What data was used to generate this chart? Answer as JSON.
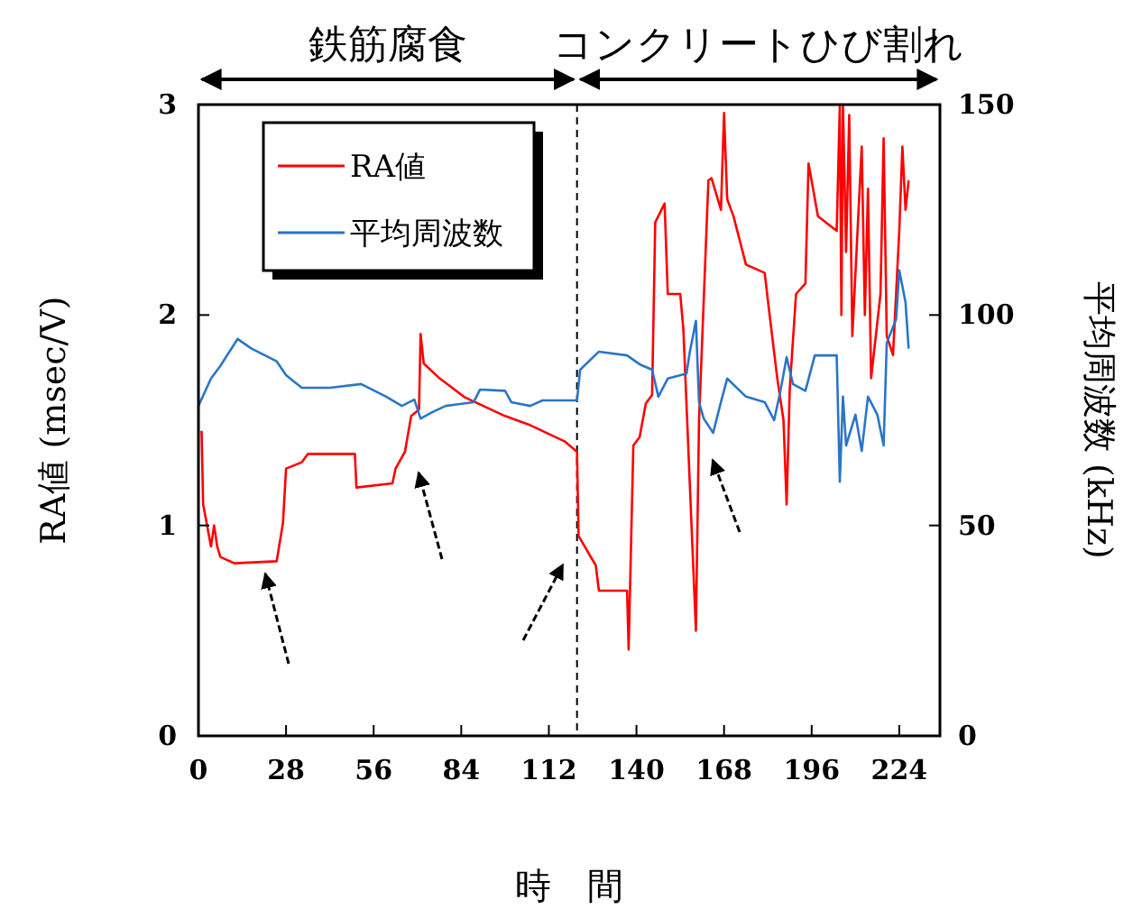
{
  "chart_data": {
    "type": "line",
    "xlabel": "時　間",
    "ylabel": "RA値 (msec/V)",
    "y2label": "平均周波数 (kHz)",
    "annotations": [
      "鉄筋腐食",
      "コンクリートひび割れ"
    ],
    "xlim": [
      0,
      237
    ],
    "xticks": [
      0,
      28,
      56,
      84,
      112,
      140,
      168,
      196,
      224
    ],
    "ylim": [
      0,
      3
    ],
    "yticks": [
      0,
      1,
      2,
      3
    ],
    "y2lim": [
      0,
      150
    ],
    "y2ticks": [
      0,
      50,
      100,
      150
    ],
    "ref_lines": [
      {
        "axis": "x",
        "value": 121,
        "line_style": "dashed",
        "color": "#000000"
      }
    ],
    "legend": "top left",
    "grid": false,
    "series": [
      {
        "name": "RA値",
        "color": "#ff0000",
        "x": [
          1,
          1.5,
          4,
          5,
          6,
          7,
          11.5,
          25,
          27,
          28,
          33,
          35,
          50,
          50.5,
          62,
          63,
          66,
          68,
          70.5,
          71,
          72,
          77,
          85,
          98,
          105.5,
          117,
          121,
          121.5,
          127,
          128,
          137,
          137.5,
          139,
          141,
          143,
          145,
          146,
          149,
          150,
          154,
          155,
          159,
          160,
          163,
          164,
          167,
          168,
          169,
          171,
          175,
          181,
          182,
          185,
          187,
          188,
          189,
          191,
          194,
          195,
          198,
          204,
          205,
          205.5,
          206,
          207,
          208,
          209,
          212,
          213,
          214,
          215,
          218,
          219,
          220,
          222,
          224,
          225,
          226,
          227
        ],
        "values": [
          1.45,
          1.1,
          0.9,
          1.0,
          0.9,
          0.85,
          0.82,
          0.83,
          1.01,
          1.27,
          1.3,
          1.34,
          1.34,
          1.18,
          1.2,
          1.27,
          1.35,
          1.52,
          1.55,
          1.91,
          1.77,
          1.7,
          1.61,
          1.52,
          1.48,
          1.4,
          1.35,
          0.95,
          0.81,
          0.69,
          0.69,
          0.41,
          1.38,
          1.42,
          1.58,
          1.62,
          2.44,
          2.53,
          2.1,
          2.1,
          1.93,
          0.5,
          1.5,
          2.64,
          2.65,
          2.5,
          2.96,
          2.55,
          2.47,
          2.24,
          2.2,
          2.07,
          1.7,
          1.5,
          1.1,
          1.65,
          2.1,
          2.15,
          2.72,
          2.47,
          2.4,
          3.0,
          2.0,
          3.0,
          2.3,
          2.95,
          1.9,
          2.8,
          2.0,
          2.6,
          1.7,
          2.1,
          2.84,
          1.9,
          1.81,
          2.4,
          2.8,
          2.5,
          2.64
        ]
      },
      {
        "name": "平均周波数",
        "color": "#2a75c8",
        "axis": "y2",
        "x": [
          0,
          4,
          7,
          12.5,
          17,
          25,
          28,
          33,
          42,
          52,
          60,
          65,
          69,
          71,
          75,
          79,
          88,
          90,
          98,
          100,
          106,
          110,
          121,
          122,
          128,
          137,
          141,
          145,
          147,
          150,
          156,
          157,
          159,
          160,
          161.5,
          164.5,
          167,
          169,
          175,
          181,
          184,
          186,
          188,
          190,
          194,
          197,
          204,
          205,
          206,
          207,
          210,
          212,
          214,
          217,
          219,
          220,
          223,
          224,
          226,
          227
        ],
        "values": [
          78.4,
          84.9,
          87.9,
          94.3,
          92,
          89,
          85.7,
          82.7,
          82.7,
          83.6,
          80.6,
          78.4,
          79.9,
          75.4,
          77,
          78.4,
          79.3,
          82.3,
          82,
          79.3,
          78.4,
          79.7,
          79.7,
          87,
          91.3,
          90.4,
          88.3,
          87,
          80.6,
          84.9,
          86.1,
          91,
          98.6,
          79.3,
          75.4,
          72,
          79.3,
          84.9,
          80.6,
          79.3,
          75,
          81.9,
          90,
          83.6,
          82,
          90.4,
          90.4,
          60.4,
          80.6,
          69,
          76.3,
          67.7,
          80.6,
          76.3,
          69,
          93.4,
          99,
          110.6,
          103,
          92
        ]
      }
    ]
  }
}
